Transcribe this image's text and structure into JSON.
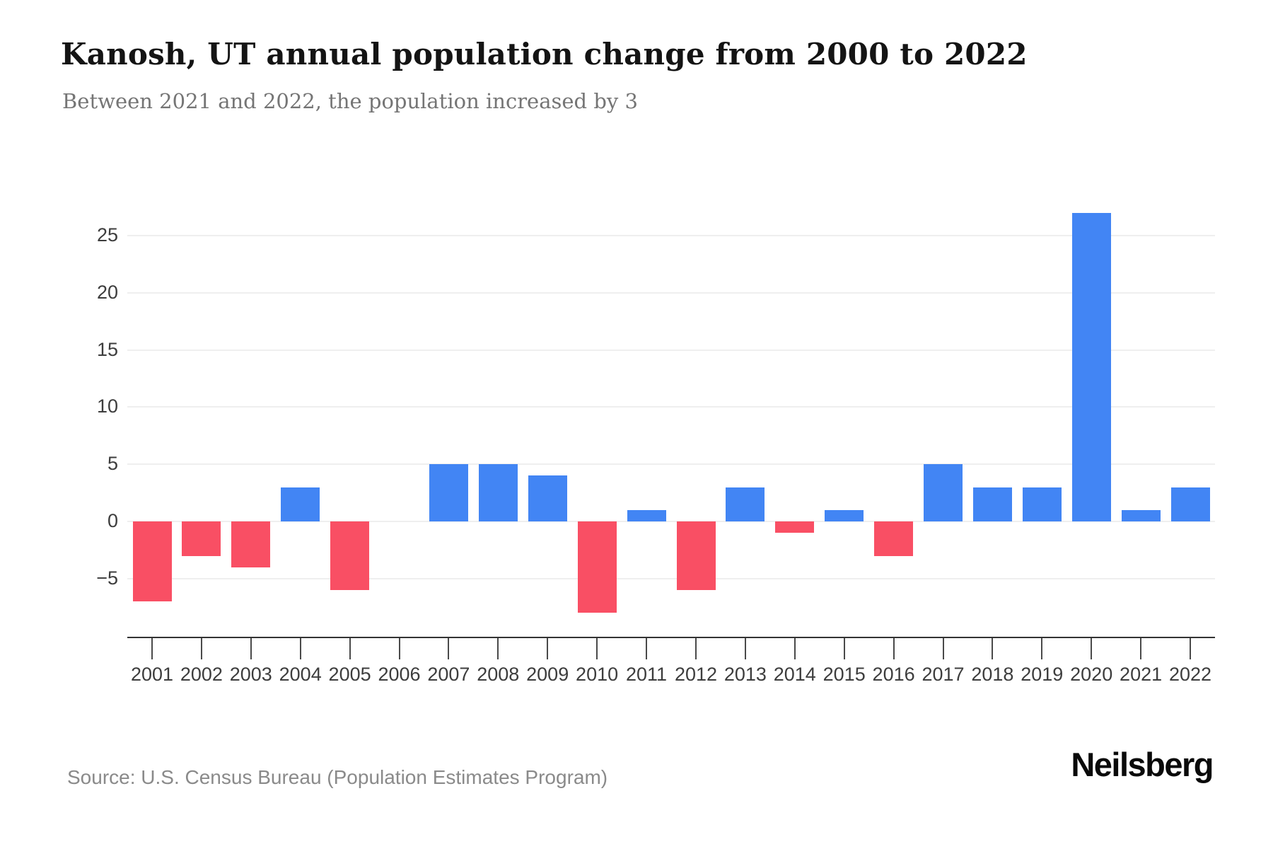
{
  "header": {
    "title": "Kanosh, UT annual population change from 2000 to 2022",
    "subtitle": "Between 2021 and 2022, the population increased by 3"
  },
  "chart_data": {
    "type": "bar",
    "title": "Kanosh, UT annual population change from 2000 to 2022",
    "subtitle": "Between 2021 and 2022, the population increased by 3",
    "categories": [
      "2001",
      "2002",
      "2003",
      "2004",
      "2005",
      "2006",
      "2007",
      "2008",
      "2009",
      "2010",
      "2011",
      "2012",
      "2013",
      "2014",
      "2015",
      "2016",
      "2017",
      "2018",
      "2019",
      "2020",
      "2021",
      "2022"
    ],
    "values": [
      -7,
      -3,
      -4,
      3,
      -6,
      0,
      5,
      5,
      4,
      -8,
      1,
      -6,
      3,
      -1,
      1,
      -3,
      5,
      3,
      3,
      27,
      1,
      3
    ],
    "xlabel": "",
    "ylabel": "",
    "ylim": [
      -10,
      30
    ],
    "yticks": [
      -5,
      0,
      5,
      10,
      15,
      20,
      25
    ],
    "ytick_labels": [
      "−5",
      "0",
      "5",
      "10",
      "15",
      "20",
      "25"
    ],
    "grid": "horizontal",
    "legend_position": "none",
    "colors": {
      "positive_bar": "#4285F4",
      "negative_bar": "#F94F64",
      "gridline": "#EFEFEF",
      "axis": "#333333",
      "tick_label": "#3D3D3D"
    }
  },
  "footer": {
    "source": "Source: U.S. Census Bureau (Population Estimates Program)",
    "brand": "Neilsberg"
  }
}
